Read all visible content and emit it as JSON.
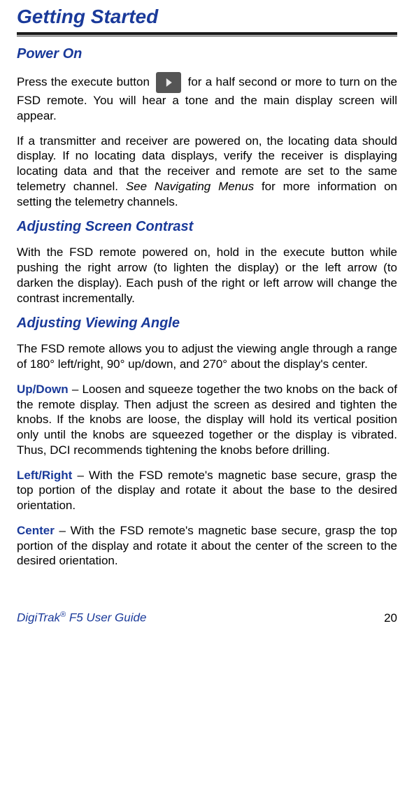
{
  "colors": {
    "heading": "#1a3a9a",
    "body_text": "#000000",
    "rule": "#1a1a1a",
    "background": "#ffffff",
    "icon_bg": "#555555",
    "icon_fg": "#eaeaea"
  },
  "typography": {
    "h1_fontsize": 28,
    "h2_fontsize": 20,
    "body_fontsize": 17,
    "h1_style": "bold italic",
    "h2_style": "bold italic",
    "body_align": "justify"
  },
  "h1": "Getting Started",
  "sections": {
    "power_on": {
      "heading": "Power On",
      "p1_a": "Press the execute button ",
      "p1_b": " for a half second or more to turn on the FSD remote.  You will hear a tone and the main display screen will appear.",
      "p2_a": "If a transmitter and receiver are powered on, the locating data should display.  If no locating data displays, verify the receiver is displaying locating data and that the receiver and remote are set to the same telemetry channel.  ",
      "p2_b": "See Navigating Menus",
      "p2_c": " for more information on setting the telemetry channels."
    },
    "contrast": {
      "heading": "Adjusting Screen Contrast",
      "p1": "With the FSD remote powered on, hold in the execute button while pushing the right arrow (to lighten the display) or the left arrow (to darken the display).  Each push of the right or left arrow will change the contrast incrementally."
    },
    "angle": {
      "heading": "Adjusting Viewing Angle",
      "p1": "The FSD remote allows you to adjust the viewing angle through a range of 180° left/right, 90° up/down, and 270° about the display's center.",
      "updown": {
        "label": "Up/Down",
        "text": " – Loosen and squeeze together the two knobs on the back of the remote display. Then adjust the screen as desired and tighten the knobs. If the knobs are loose, the display will hold its vertical position only until the knobs are squeezed together or the display is vibrated. Thus, DCI recommends tightening the knobs before drilling."
      },
      "leftright": {
        "label": "Left/Right",
        "text": " – With the FSD remote's magnetic base secure, grasp the top portion of the display and rotate it about the base to the desired orientation."
      },
      "center": {
        "label": "Center",
        "text": " – With the FSD remote's magnetic base secure, grasp the top portion of the display and rotate it about the center of the screen to the desired orientation."
      }
    }
  },
  "footer": {
    "left_a": "DigiTrak",
    "left_sup": "®",
    "left_b": " F5 User Guide",
    "page": "20"
  }
}
